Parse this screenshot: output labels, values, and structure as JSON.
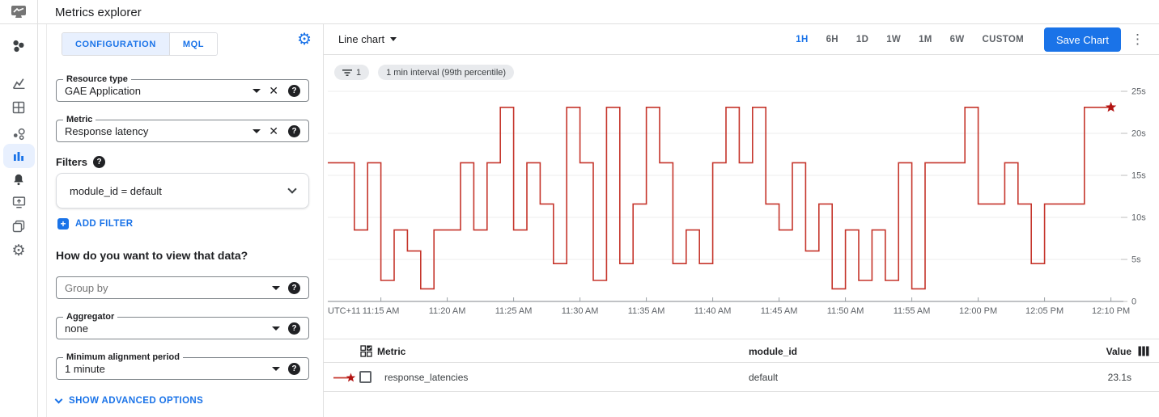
{
  "topbar": {
    "title": "Metrics explorer"
  },
  "sidebar": {
    "selected": "metrics-explorer",
    "icons": [
      "monitoring-logo",
      "overview",
      "dashboards",
      "dashboard-grid",
      "services",
      "metrics-explorer",
      "alerting",
      "uptime-checks",
      "groups",
      "settings"
    ]
  },
  "config": {
    "tabs": [
      {
        "label": "CONFIGURATION",
        "active": true
      },
      {
        "label": "MQL",
        "active": false
      }
    ],
    "gear_icon": "gear-icon",
    "resource_type": {
      "label": "Resource type",
      "value": "GAE Application"
    },
    "metric": {
      "label": "Metric",
      "value": "Response latency"
    },
    "filters_label": "Filters",
    "filter_value": "module_id = default",
    "add_filter_label": "ADD FILTER",
    "view_heading": "How do you want to view that data?",
    "group_by": {
      "placeholder": "Group by"
    },
    "aggregator": {
      "label": "Aggregator",
      "value": "none"
    },
    "min_alignment": {
      "label": "Minimum alignment period",
      "value": "1 minute"
    },
    "advanced_label": "SHOW ADVANCED OPTIONS"
  },
  "chart_header": {
    "chart_type_label": "Line chart",
    "time_ranges": [
      "1H",
      "6H",
      "1D",
      "1W",
      "1M",
      "6W",
      "CUSTOM"
    ],
    "selected_range": "1H",
    "save_button": "Save Chart",
    "menu_icon": "kebab-menu-icon"
  },
  "chips": {
    "filter_icon": "filter-list-icon",
    "filter_count": "1",
    "interval": "1 min interval (99th percentile)"
  },
  "chart_data": {
    "type": "line",
    "step": true,
    "unit": "s",
    "timezone_label": "UTC+11",
    "x_start_label": "11:11 AM",
    "x_interval_minutes": 1,
    "x_tick_labels": [
      "11:15 AM",
      "11:20 AM",
      "11:25 AM",
      "11:30 AM",
      "11:35 AM",
      "11:40 AM",
      "11:45 AM",
      "11:50 AM",
      "11:55 AM",
      "12:00 PM",
      "12:05 PM",
      "12:10 PM"
    ],
    "x_tick_indices": [
      4,
      9,
      14,
      19,
      24,
      29,
      34,
      39,
      44,
      49,
      54,
      59
    ],
    "y_tick_values": [
      25,
      20,
      15,
      10,
      5,
      0
    ],
    "y_tick_labels": [
      "25s",
      "20s",
      "15s",
      "10s",
      "5s",
      "0"
    ],
    "ylim": [
      0,
      25
    ],
    "grid": "horizontal",
    "legend_position": "table-below",
    "series": [
      {
        "name": "response_latencies",
        "color": "#c5352b",
        "marker_color": "#b31412",
        "end_marker": "star",
        "values": [
          16.5,
          16.5,
          8.5,
          16.5,
          2.5,
          8.5,
          6,
          1.5,
          8.5,
          8.5,
          16.5,
          8.5,
          16.5,
          23.1,
          8.5,
          16.5,
          11.6,
          4.5,
          23.1,
          16.5,
          2.5,
          23.1,
          4.5,
          11.6,
          23.1,
          16.5,
          4.5,
          8.5,
          4.5,
          16.5,
          23.1,
          16.5,
          23.1,
          11.6,
          8.5,
          16.5,
          6,
          11.6,
          1.5,
          8.5,
          2.5,
          8.5,
          2.5,
          16.5,
          1.5,
          16.5,
          16.5,
          16.5,
          23.1,
          11.6,
          11.6,
          16.5,
          11.6,
          4.5,
          11.6,
          11.6,
          11.6,
          23.1,
          23.1,
          23.1
        ]
      }
    ]
  },
  "table": {
    "headers": {
      "metric": "Metric",
      "module_id": "module_id",
      "value": "Value"
    },
    "rows": [
      {
        "metric": "response_latencies",
        "module_id": "default",
        "value": "23.1s"
      }
    ]
  },
  "colors": {
    "accent": "#1a73e8",
    "accent_bg": "#e8f0fe",
    "series_red": "#c5352b",
    "star_red": "#b31412",
    "chip_bg": "#e8eaed",
    "border": "#e0e0e0",
    "text_primary": "#202124",
    "text_secondary": "#5f6368"
  }
}
